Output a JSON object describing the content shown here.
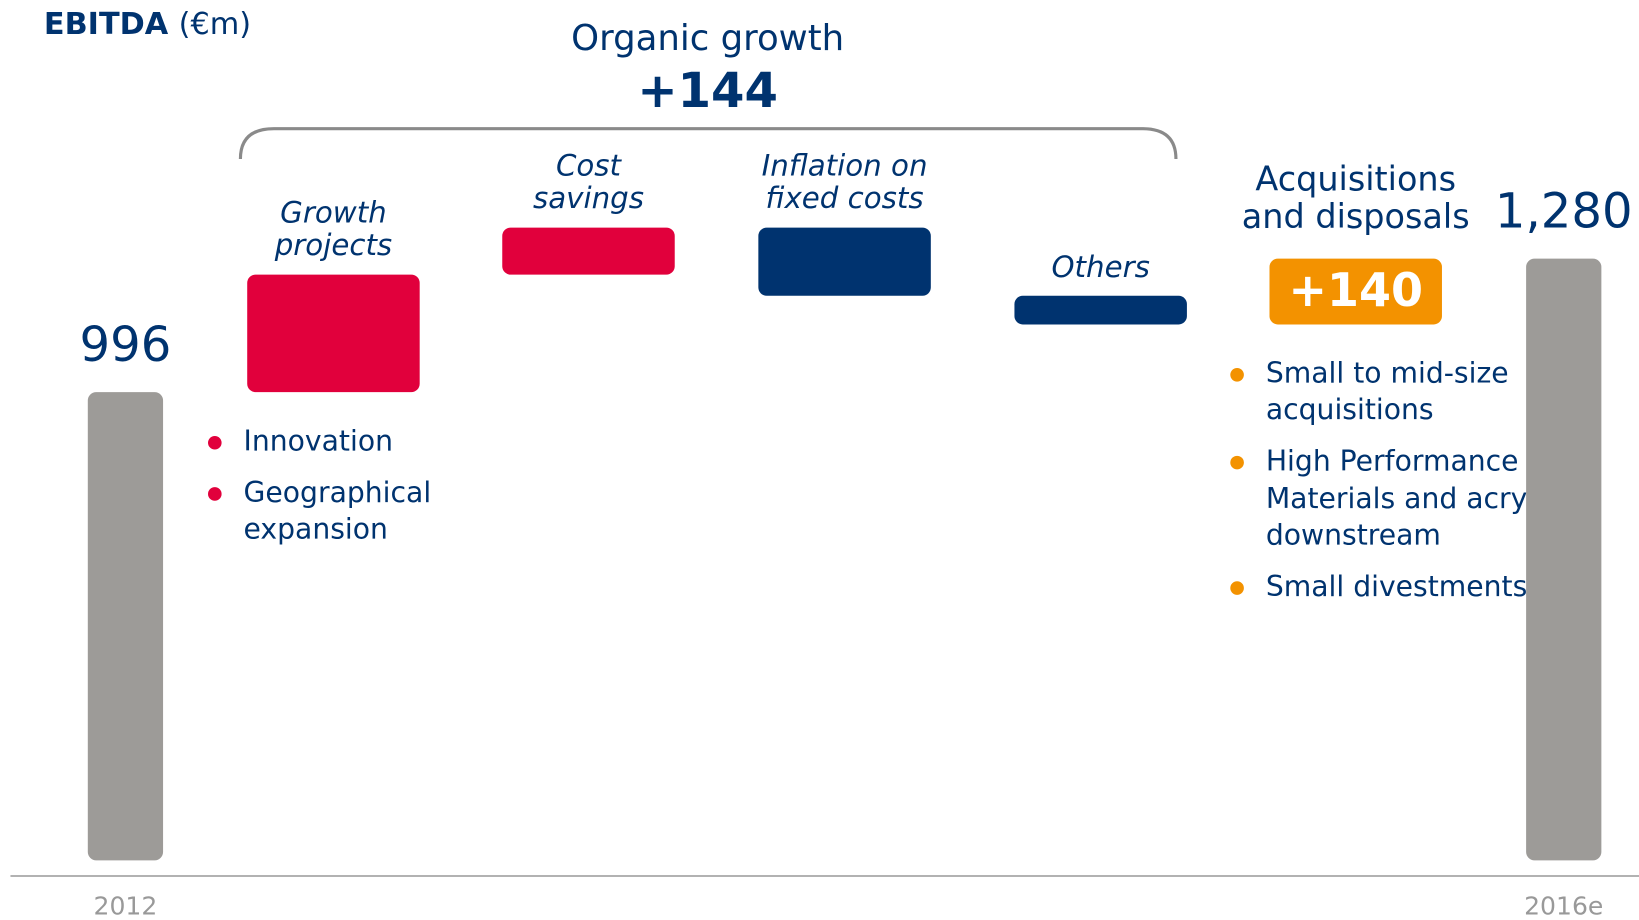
{
  "chart_data": {
    "type": "waterfall",
    "title": "EBITDA",
    "unit": "(€m)",
    "categories": [
      "2012",
      "Growth projects",
      "Cost savings",
      "Inflation on fixed costs",
      "Others",
      "Acquisitions and disposals",
      "2016e"
    ],
    "measure": [
      "absolute",
      "relative",
      "relative",
      "relative",
      "relative",
      "relative",
      "absolute"
    ],
    "values": [
      996,
      250,
      100,
      -145,
      -61,
      140,
      1280
    ],
    "value_labels": [
      "996",
      null,
      null,
      null,
      null,
      "+140",
      "1,280"
    ],
    "colors": [
      "#9d9b98",
      "#e1003c",
      "#e1003c",
      "#00336f",
      "#00336f",
      "#f39200",
      "#9d9b98"
    ],
    "notes": [
      null,
      [
        "Innovation",
        "Geographical expansion"
      ],
      null,
      null,
      null,
      [
        "Small to mid-size acquisitions",
        "High Performance Materials and acrylic downstream",
        "Small divestments"
      ],
      null
    ],
    "annotation": {
      "text": "Organic growth",
      "value": 144,
      "label": "+144"
    },
    "ylim": [
      0,
      1830
    ]
  }
}
